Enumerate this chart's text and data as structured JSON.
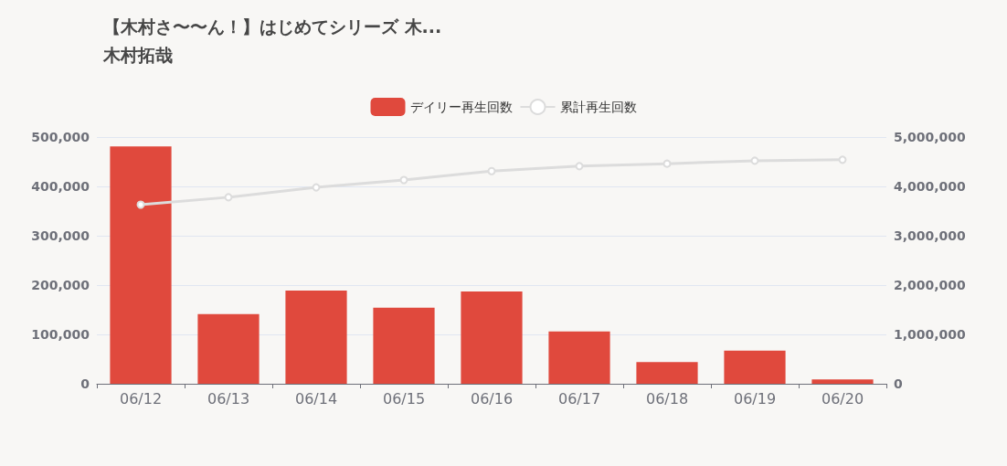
{
  "chart_data": {
    "type": "bar",
    "title": "【木村さ〜〜ん！】はじめてシリーズ 木...",
    "subtitle": "木村拓哉",
    "categories": [
      "06/12",
      "06/13",
      "06/14",
      "06/15",
      "06/16",
      "06/17",
      "06/18",
      "06/19",
      "06/20"
    ],
    "series": [
      {
        "name": "デイリー再生回数",
        "color": "#e0493d",
        "values": [
          481000,
          141000,
          189000,
          154000,
          187000,
          106000,
          44000,
          67000,
          9000
        ]
      },
      {
        "name": "累計再生回数",
        "type": "line",
        "axis": "y2",
        "color": "#dcdcdc",
        "values": [
          3630000,
          3780000,
          3980000,
          4130000,
          4310000,
          4410000,
          4460000,
          4520000,
          4540000
        ]
      }
    ],
    "ylim": [
      0,
      500000
    ],
    "yticks": [
      0,
      {
        "value": 100000,
        "label": "100,000"
      },
      {
        "value": 200000,
        "label": "200,000"
      },
      {
        "value": 300000,
        "label": "300,000"
      },
      {
        "value": 400000,
        "label": "400,000"
      },
      {
        "value": 500000,
        "label": "500,000"
      }
    ],
    "y2lim": [
      0,
      5000000
    ],
    "y2ticks": [
      0,
      {
        "value": 1000000,
        "label": "1,000,000"
      },
      {
        "value": 2000000,
        "label": "2,000,000"
      },
      {
        "value": 3000000,
        "label": "3,000,000"
      },
      {
        "value": 4000000,
        "label": "4,000,000"
      },
      {
        "value": 5000000,
        "label": "5,000,000"
      }
    ],
    "grid": "y",
    "legend": "top",
    "marker": "circle"
  }
}
